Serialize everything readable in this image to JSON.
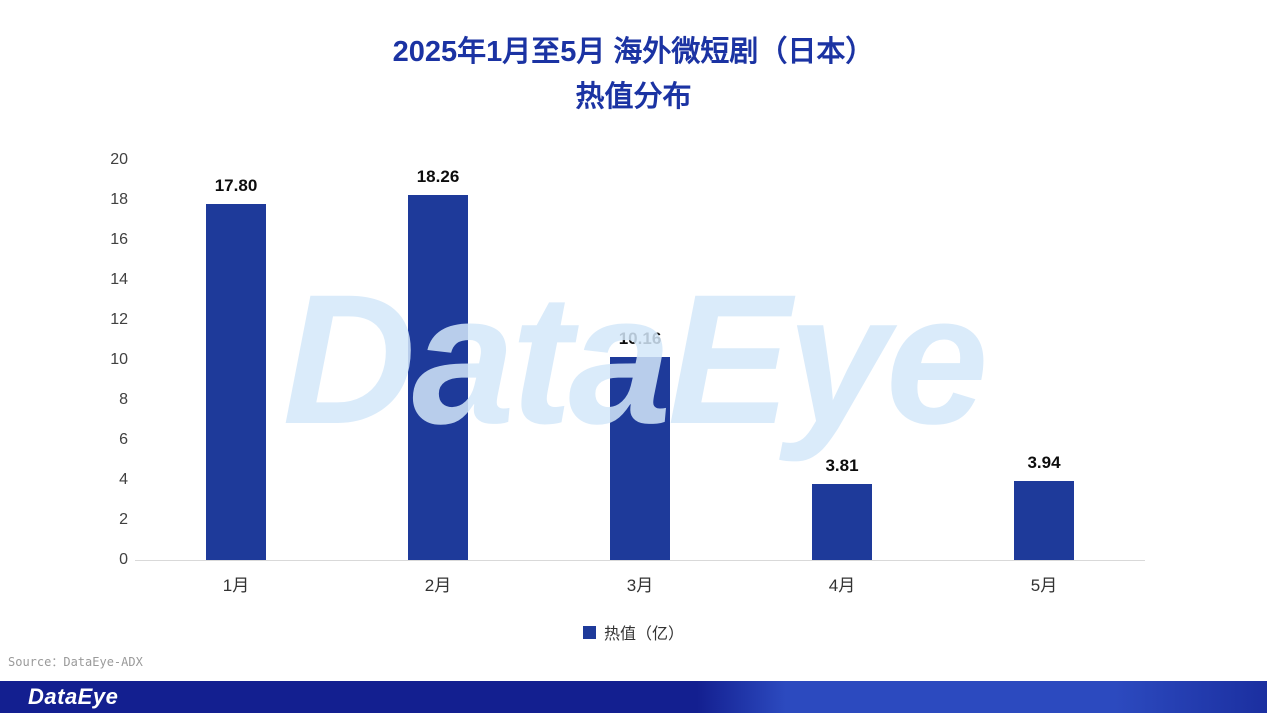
{
  "title": {
    "line1": "2025年1月至5月  海外微短剧（日本）",
    "line2": "热值分布"
  },
  "chart_data": {
    "type": "bar",
    "title": "2025年1月至5月 海外微短剧（日本）热值分布",
    "categories": [
      "1月",
      "2月",
      "3月",
      "4月",
      "5月"
    ],
    "values": [
      17.8,
      18.26,
      10.16,
      3.81,
      3.94
    ],
    "value_labels": [
      "17.80",
      "18.26",
      "10.16",
      "3.81",
      "3.94"
    ],
    "ylim": [
      0,
      20
    ],
    "yticks": [
      0,
      2,
      4,
      6,
      8,
      10,
      12,
      14,
      16,
      18,
      20
    ],
    "legend": "热值（亿）",
    "legend_position": "bottom",
    "grid": false,
    "bar_color": "#1e3a9a"
  },
  "watermark": "DataEye",
  "source": "Source：DataEye-ADX",
  "footer": {
    "logo": "DataEye"
  },
  "colors": {
    "title": "#1b33a3",
    "bar": "#1e3a9a",
    "watermark": "#d4e8f9",
    "footer_bg": "#131f90",
    "axis_line": "#d9d9d9"
  }
}
